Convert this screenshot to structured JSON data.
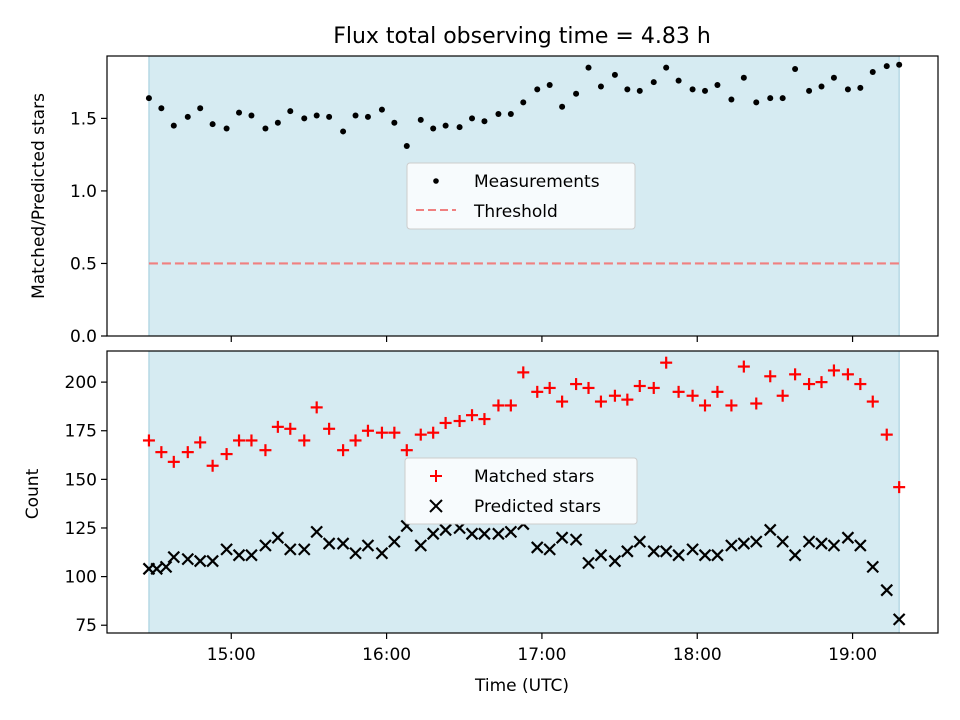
{
  "chart_data": [
    {
      "type": "scatter",
      "title": "Flux total observing time = 4.83 h",
      "xlabel": "",
      "ylabel": "Matched/Predicted stars",
      "ylim": [
        0,
        1.93
      ],
      "yticks": [
        0.0,
        0.5,
        1.0,
        1.5
      ],
      "ytick_labels": [
        "0.0",
        "0.5",
        "1.0",
        "1.5"
      ],
      "x_unit": "hours UTC",
      "xlim": [
        14.2,
        19.55
      ],
      "observing_window": [
        14.47,
        19.3
      ],
      "legend_position": "center",
      "threshold": {
        "name": "Threshold",
        "value": 0.5,
        "color": "#f08080"
      },
      "series": [
        {
          "name": "Measurements",
          "color": "#000000",
          "marker": "dot",
          "x": [
            14.47,
            14.55,
            14.63,
            14.72,
            14.8,
            14.88,
            14.97,
            15.05,
            15.13,
            15.22,
            15.3,
            15.38,
            15.47,
            15.55,
            15.63,
            15.72,
            15.8,
            15.88,
            15.97,
            16.05,
            16.13,
            16.22,
            16.3,
            16.38,
            16.47,
            16.55,
            16.63,
            16.72,
            16.8,
            16.88,
            16.97,
            17.05,
            17.13,
            17.22,
            17.3,
            17.38,
            17.47,
            17.55,
            17.63,
            17.72,
            17.8,
            17.88,
            17.97,
            18.05,
            18.13,
            18.22,
            18.3,
            18.38,
            18.47,
            18.55,
            18.63,
            18.72,
            18.8,
            18.88,
            18.97,
            19.05,
            19.13,
            19.22,
            19.3
          ],
          "y": [
            1.64,
            1.57,
            1.45,
            1.51,
            1.57,
            1.46,
            1.43,
            1.54,
            1.52,
            1.43,
            1.47,
            1.55,
            1.5,
            1.52,
            1.51,
            1.41,
            1.52,
            1.51,
            1.56,
            1.47,
            1.31,
            1.49,
            1.43,
            1.45,
            1.44,
            1.5,
            1.48,
            1.53,
            1.53,
            1.61,
            1.7,
            1.73,
            1.58,
            1.67,
            1.85,
            1.72,
            1.8,
            1.7,
            1.69,
            1.75,
            1.85,
            1.76,
            1.7,
            1.69,
            1.73,
            1.63,
            1.78,
            1.61,
            1.64,
            1.64,
            1.84,
            1.69,
            1.72,
            1.78,
            1.7,
            1.71,
            1.82,
            1.86,
            1.87
          ]
        }
      ]
    },
    {
      "type": "scatter",
      "title": "",
      "xlabel": "Time (UTC)",
      "ylabel": "Count",
      "ylim": [
        71,
        216
      ],
      "yticks": [
        75,
        100,
        125,
        150,
        175,
        200
      ],
      "ytick_labels": [
        "75",
        "100",
        "125",
        "150",
        "175",
        "200"
      ],
      "x_unit": "hours UTC",
      "xlim": [
        14.2,
        19.55
      ],
      "xticks": [
        15,
        16,
        17,
        18,
        19
      ],
      "xtick_labels": [
        "15:00",
        "16:00",
        "17:00",
        "18:00",
        "19:00"
      ],
      "observing_window": [
        14.47,
        19.3
      ],
      "legend_position": "center",
      "series": [
        {
          "name": "Matched stars",
          "color": "#ff0000",
          "marker": "plus",
          "x": [
            14.47,
            14.55,
            14.63,
            14.72,
            14.8,
            14.88,
            14.97,
            15.05,
            15.13,
            15.22,
            15.3,
            15.38,
            15.47,
            15.55,
            15.63,
            15.72,
            15.8,
            15.88,
            15.97,
            16.05,
            16.13,
            16.22,
            16.3,
            16.38,
            16.47,
            16.55,
            16.63,
            16.72,
            16.8,
            16.88,
            16.97,
            17.05,
            17.13,
            17.22,
            17.3,
            17.38,
            17.47,
            17.55,
            17.63,
            17.72,
            17.8,
            17.88,
            17.97,
            18.05,
            18.13,
            18.22,
            18.3,
            18.38,
            18.47,
            18.55,
            18.63,
            18.72,
            18.8,
            18.88,
            18.97,
            19.05,
            19.13,
            19.22,
            19.3
          ],
          "y": [
            170,
            164,
            159,
            164,
            169,
            157,
            163,
            170,
            170,
            165,
            177,
            176,
            170,
            187,
            176,
            165,
            170,
            175,
            174,
            174,
            165,
            173,
            174,
            179,
            180,
            183,
            181,
            188,
            188,
            205,
            195,
            197,
            190,
            199,
            197,
            190,
            193,
            191,
            198,
            197,
            210,
            195,
            193,
            188,
            195,
            188,
            208,
            189,
            203,
            193,
            204,
            199,
            200,
            206,
            204,
            199,
            190,
            173,
            146
          ]
        },
        {
          "name": "Predicted stars",
          "color": "#000000",
          "marker": "x",
          "x": [
            14.47,
            14.52,
            14.58,
            14.63,
            14.72,
            14.8,
            14.88,
            14.97,
            15.05,
            15.13,
            15.22,
            15.3,
            15.38,
            15.47,
            15.55,
            15.63,
            15.72,
            15.8,
            15.88,
            15.97,
            16.05,
            16.13,
            16.22,
            16.3,
            16.38,
            16.47,
            16.55,
            16.63,
            16.72,
            16.8,
            16.88,
            16.97,
            17.05,
            17.13,
            17.22,
            17.3,
            17.38,
            17.47,
            17.55,
            17.63,
            17.72,
            17.8,
            17.88,
            17.97,
            18.05,
            18.13,
            18.22,
            18.3,
            18.38,
            18.47,
            18.55,
            18.63,
            18.72,
            18.8,
            18.88,
            18.97,
            19.05,
            19.13,
            19.22,
            19.3
          ],
          "y": [
            104,
            104,
            105,
            110,
            109,
            108,
            108,
            114,
            111,
            111,
            116,
            120,
            114,
            114,
            123,
            117,
            117,
            112,
            116,
            112,
            118,
            126,
            116,
            122,
            124,
            125,
            122,
            122,
            122,
            123,
            127,
            115,
            114,
            120,
            119,
            107,
            111,
            108,
            113,
            118,
            113,
            113,
            111,
            114,
            111,
            111,
            116,
            117,
            118,
            124,
            118,
            111,
            118,
            117,
            116,
            120,
            116,
            105,
            93,
            78
          ]
        }
      ]
    }
  ]
}
